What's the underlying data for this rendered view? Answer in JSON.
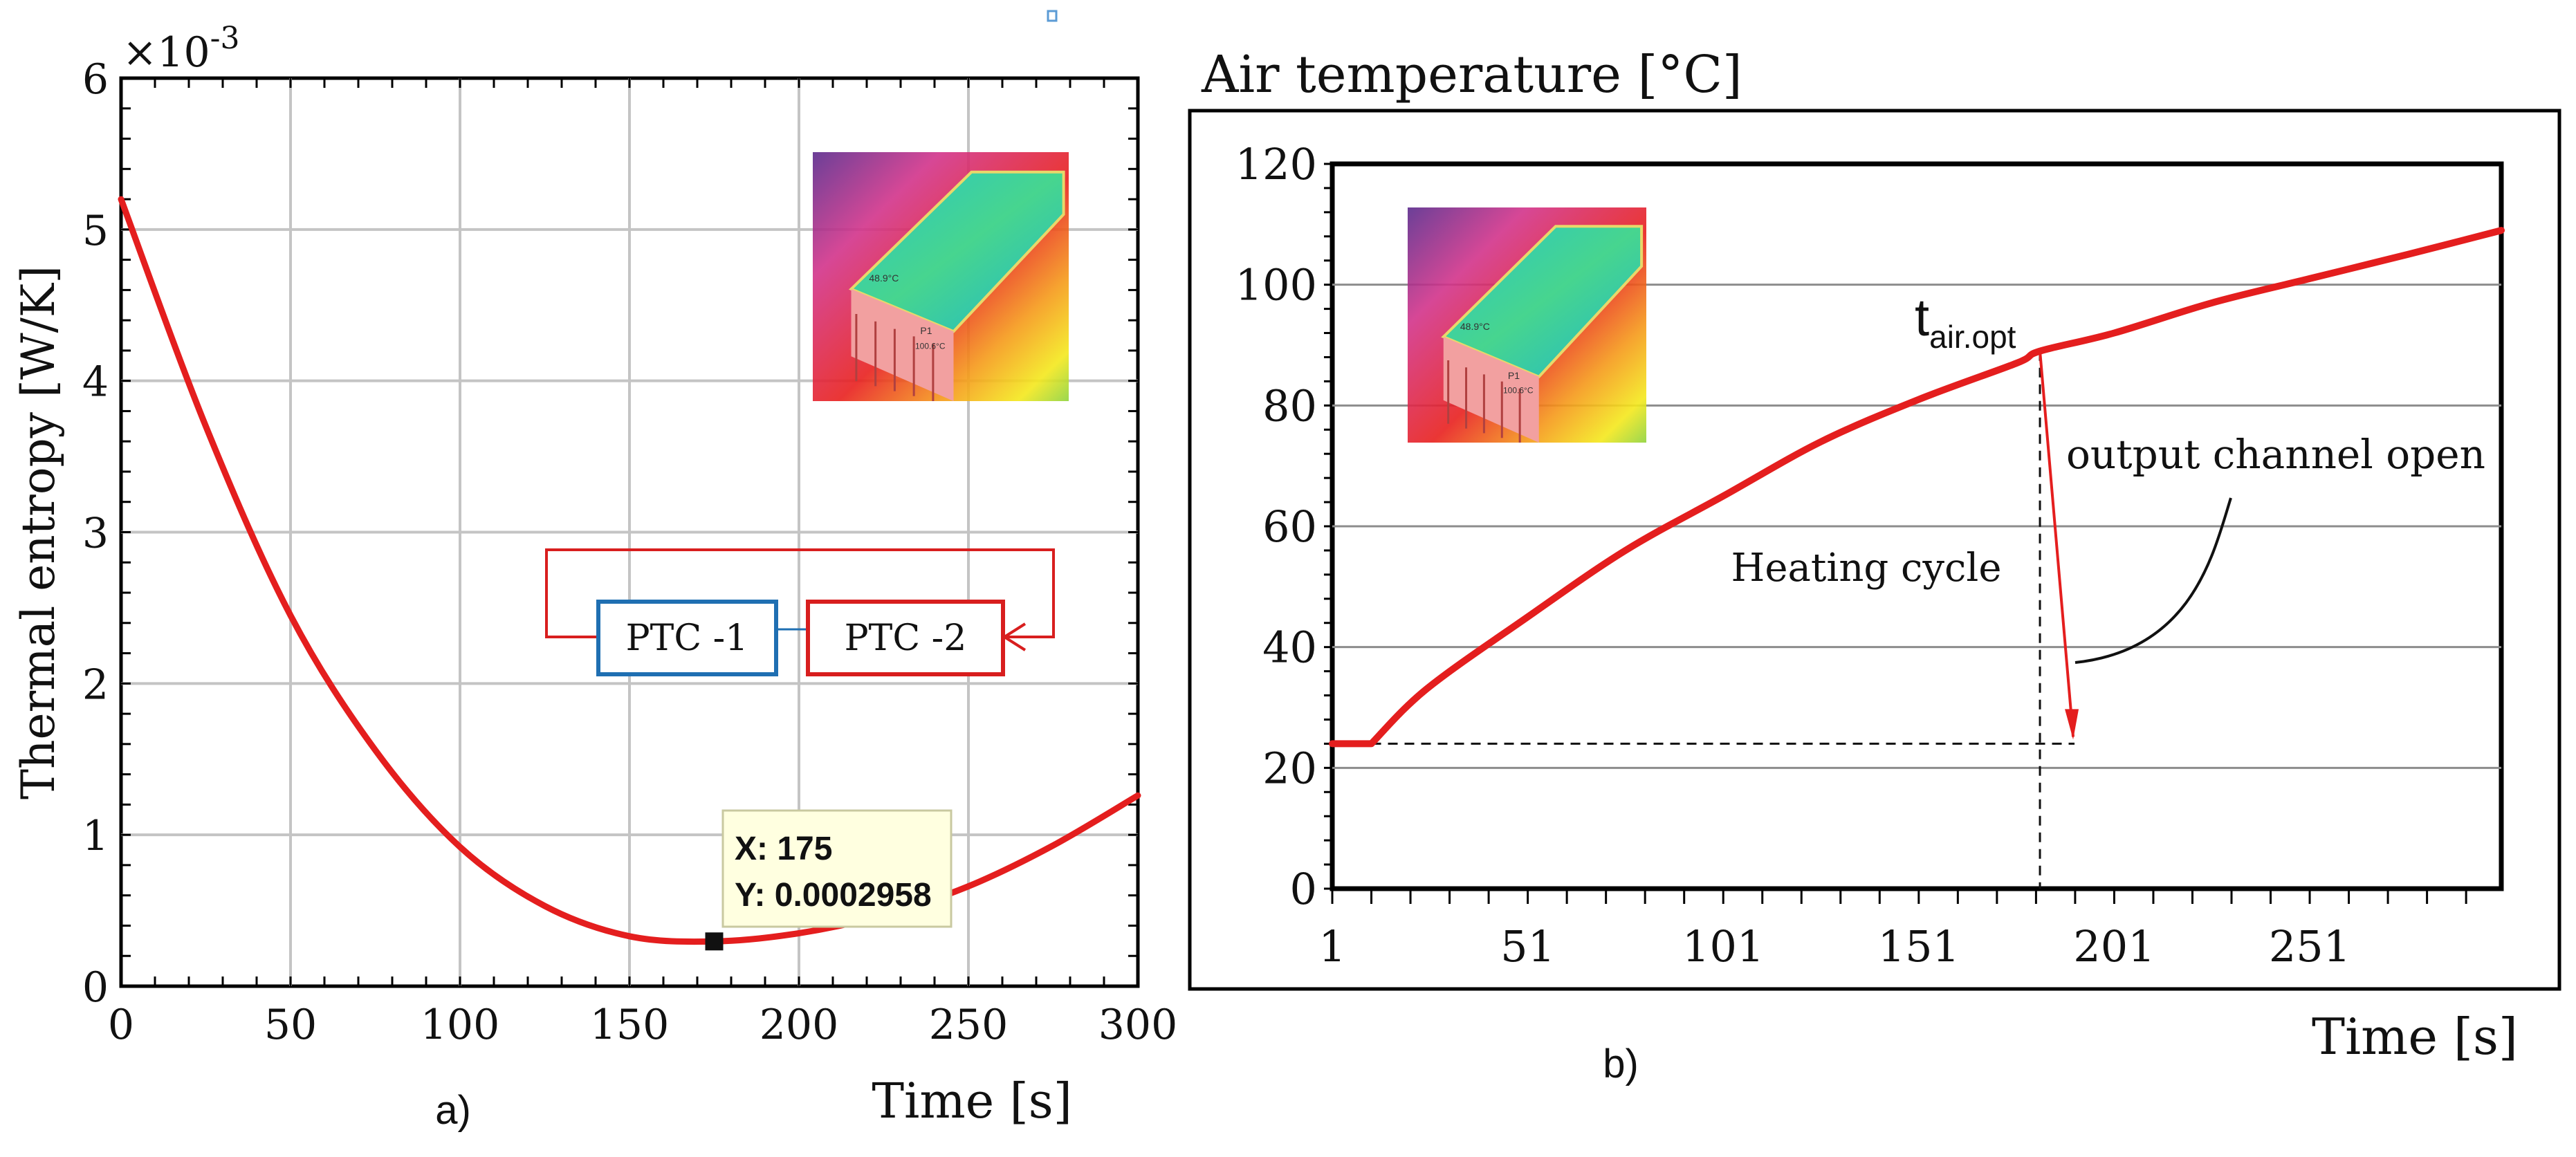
{
  "charts_colors": {
    "curve": "#e41e1e",
    "ptc1": "#1f6fb2",
    "ptc2": "#d81e1e",
    "grid_a": "#c4c4c4",
    "grid_b": "#8c8c8c",
    "datatip_bg": "#ffffe0"
  },
  "chart_data": [
    {
      "id": "a",
      "type": "line",
      "ylabel": "Thermal entropy [W/K]",
      "xlabel": "Time [s]",
      "panel_label": "a)",
      "y_exponent": "×10",
      "y_exponent_power": "-3",
      "xlim": [
        0,
        300
      ],
      "ylim": [
        0,
        6
      ],
      "x_ticks": [
        0,
        50,
        100,
        150,
        200,
        250,
        300
      ],
      "y_ticks": [
        0,
        1,
        2,
        3,
        4,
        5,
        6
      ],
      "grid": true,
      "series": [
        {
          "x": [
            0,
            25,
            50,
            75,
            100,
            125,
            150,
            175,
            200,
            225,
            250,
            275,
            300
          ],
          "y": [
            5.2,
            3.7,
            2.45,
            1.56,
            0.92,
            0.53,
            0.33,
            0.2958,
            0.35,
            0.47,
            0.66,
            0.93,
            1.26
          ]
        }
      ],
      "datatip": {
        "x": 175,
        "y": 0.2958,
        "line1": "X: 175",
        "line2": "Y: 0.0002958"
      },
      "inset_labels": [
        "48.9°C",
        "P1",
        "100.6°C"
      ],
      "diagram": {
        "box1": "PTC -1",
        "box2": "PTC -2"
      }
    },
    {
      "id": "b",
      "type": "line",
      "title": "Air temperature [°C]",
      "xlabel": "Time [s]",
      "panel_label": "b)",
      "xlim": [
        1,
        300
      ],
      "ylim": [
        0,
        120
      ],
      "x_ticks": [
        1,
        51,
        101,
        151,
        201,
        251
      ],
      "y_ticks": [
        0,
        20,
        40,
        60,
        80,
        100,
        120
      ],
      "grid": "horizontal",
      "series": [
        {
          "x": [
            1,
            11,
            25,
            51,
            76,
            101,
            126,
            151,
            176,
            182,
            201,
            226,
            251,
            276,
            300
          ],
          "y": [
            24,
            24,
            33,
            45,
            56,
            65,
            74,
            81,
            87,
            89,
            92,
            97,
            101,
            105,
            109
          ]
        }
      ],
      "annotations": {
        "t_opt_main": "t",
        "t_opt_sub": "air.opt",
        "t_opt_x": 182,
        "heating": "Heating cycle",
        "output": "output channel open",
        "drop_to_y": 24
      },
      "inset_labels": [
        "48.9°C",
        "P1",
        "100.6°C"
      ]
    }
  ]
}
